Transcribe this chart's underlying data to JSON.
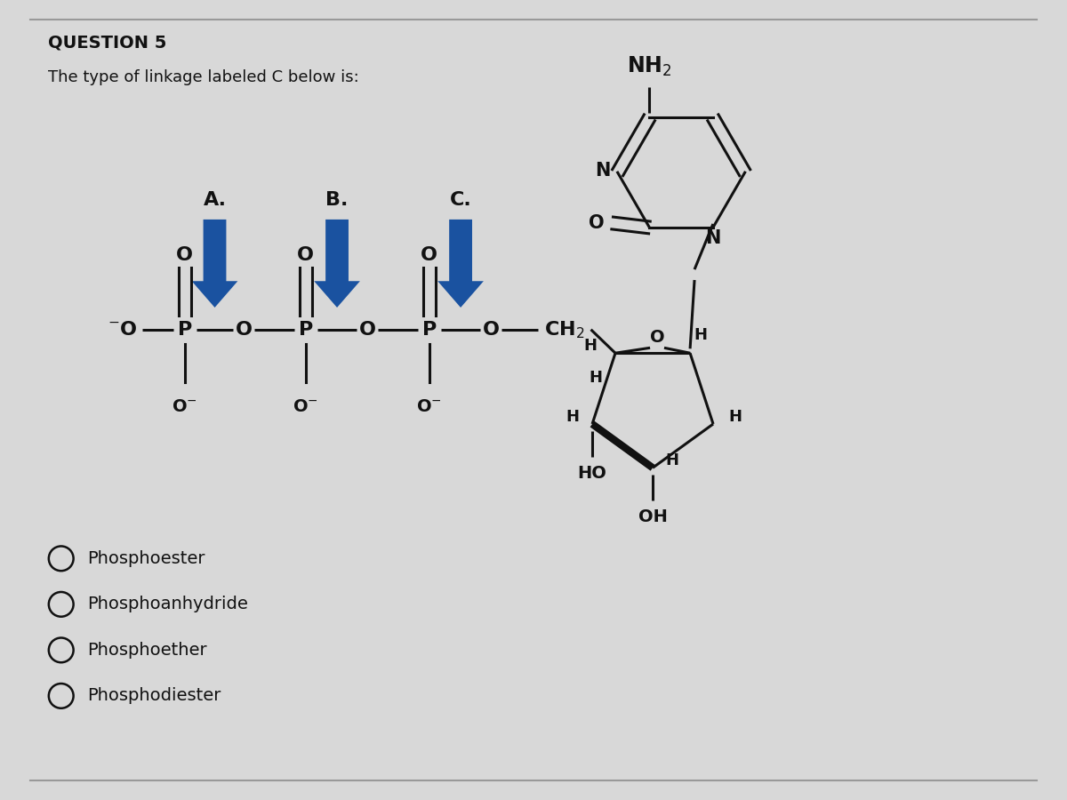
{
  "title": "QUESTION 5",
  "subtitle": "The type of linkage labeled C below is:",
  "bg_color": "#d8d8d8",
  "panel_bg": "#e8e8e8",
  "options": [
    "Phosphoester",
    "Phosphoanhydride",
    "Phosphoether",
    "Phosphodiester"
  ],
  "arrow_color": "#1a52a0",
  "label_A": "A.",
  "label_B": "B.",
  "label_C": "C.",
  "structure_color": "#111111",
  "title_fontsize": 14,
  "subtitle_fontsize": 13,
  "structure_fontsize": 16,
  "option_fontsize": 14
}
